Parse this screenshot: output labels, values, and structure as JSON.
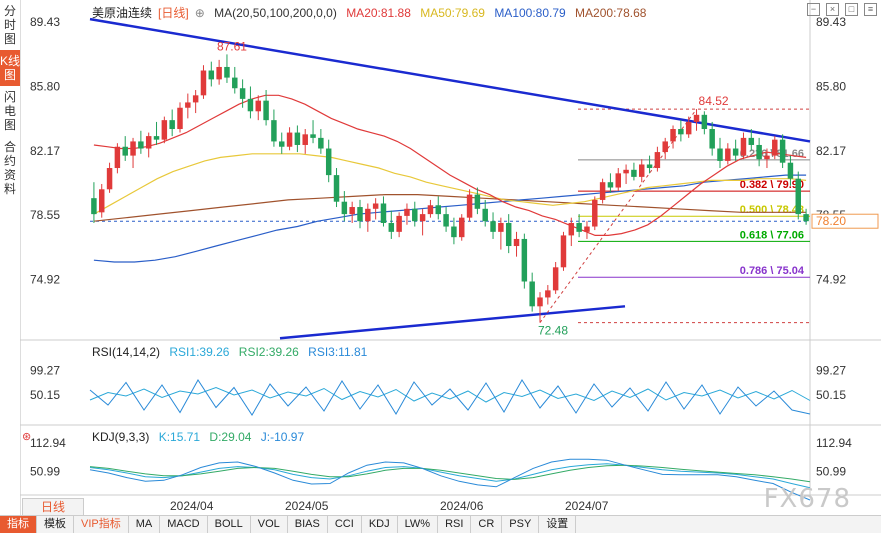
{
  "sidebar": {
    "tabs": [
      {
        "label": "分时图",
        "active": false
      },
      {
        "label": "K线图",
        "active": true
      },
      {
        "label": "闪电图",
        "active": false
      },
      {
        "label": "合约资料",
        "active": false
      }
    ]
  },
  "legend": {
    "symbol": "美原油连续",
    "period": "[日线]",
    "ma_label": "MA(20,50,100,200,0,0)",
    "ma20": "MA20:81.88",
    "ma50": "MA50:79.69",
    "ma100": "MA100:80.79",
    "ma200": "MA200:78.68",
    "colors": {
      "ma20": "#e03a3a",
      "ma50": "#e8c83a",
      "ma100": "#2a5ec8",
      "ma200": "#a0522d"
    }
  },
  "rsi_legend": {
    "name": "RSI(14,14,2)",
    "rsi1": "RSI1:39.26",
    "rsi2": "RSI2:39.26",
    "rsi3": "RSI3:11.81"
  },
  "kdj_legend": {
    "name": "KDJ(9,3,3)",
    "k": "K:15.71",
    "d": "D:29.04",
    "j": "J:-10.97"
  },
  "bottom_bar": {
    "period_label": "日线",
    "items": [
      "指标",
      "模板",
      "VIP指标",
      "MA",
      "MACD",
      "BOLL",
      "VOL",
      "BIAS",
      "CCI",
      "KDJ",
      "LW%",
      "RSI",
      "CR",
      "PSY",
      "设置"
    ]
  },
  "watermark": "FX678",
  "chart_data": [
    {
      "type": "candlestick",
      "title": "美原油连续 日线",
      "y_ticks": [
        89.43,
        85.8,
        82.17,
        78.55,
        74.92
      ],
      "ylim": [
        71.5,
        90.0
      ],
      "x_ticks": [
        "2024/04",
        "2024/05",
        "2024/06",
        "2024/07"
      ],
      "current_price": "78.20",
      "annotations": {
        "high": "87.61",
        "low": "72.48",
        "swing_high": "84.52"
      },
      "fib_levels": [
        {
          "label": "0.236 \\ 81.66",
          "value": 81.66,
          "color": "#888888"
        },
        {
          "label": "0.382 \\ 79.90",
          "value": 79.9,
          "color": "#cc0000"
        },
        {
          "label": "0.500 \\ 78.48",
          "value": 78.48,
          "color": "#c8c800"
        },
        {
          "label": "0.618 \\ 77.06",
          "value": 77.06,
          "color": "#00aa00"
        },
        {
          "label": "0.786 \\ 75.04",
          "value": 75.04,
          "color": "#8833cc"
        }
      ],
      "candles": [
        {
          "o": 79.5,
          "h": 80.4,
          "l": 78.1,
          "c": 78.6
        },
        {
          "o": 78.7,
          "h": 80.3,
          "l": 78.4,
          "c": 80.0
        },
        {
          "o": 80.0,
          "h": 81.5,
          "l": 79.8,
          "c": 81.2
        },
        {
          "o": 81.2,
          "h": 82.6,
          "l": 80.9,
          "c": 82.4
        },
        {
          "o": 82.4,
          "h": 83.0,
          "l": 81.6,
          "c": 81.9
        },
        {
          "o": 81.9,
          "h": 82.9,
          "l": 81.2,
          "c": 82.7
        },
        {
          "o": 82.7,
          "h": 83.3,
          "l": 82.0,
          "c": 82.3
        },
        {
          "o": 82.3,
          "h": 83.2,
          "l": 81.8,
          "c": 83.0
        },
        {
          "o": 83.0,
          "h": 83.8,
          "l": 82.5,
          "c": 82.8
        },
        {
          "o": 82.8,
          "h": 84.1,
          "l": 82.6,
          "c": 83.9
        },
        {
          "o": 83.9,
          "h": 84.5,
          "l": 83.0,
          "c": 83.4
        },
        {
          "o": 83.4,
          "h": 84.9,
          "l": 83.2,
          "c": 84.6
        },
        {
          "o": 84.6,
          "h": 85.4,
          "l": 84.0,
          "c": 84.9
        },
        {
          "o": 84.9,
          "h": 85.6,
          "l": 84.3,
          "c": 85.3
        },
        {
          "o": 85.3,
          "h": 87.0,
          "l": 85.1,
          "c": 86.7
        },
        {
          "o": 86.7,
          "h": 87.2,
          "l": 85.8,
          "c": 86.2
        },
        {
          "o": 86.2,
          "h": 87.3,
          "l": 85.9,
          "c": 86.9
        },
        {
          "o": 86.9,
          "h": 87.61,
          "l": 86.0,
          "c": 86.3
        },
        {
          "o": 86.3,
          "h": 86.9,
          "l": 85.4,
          "c": 85.7
        },
        {
          "o": 85.7,
          "h": 86.2,
          "l": 84.6,
          "c": 85.1
        },
        {
          "o": 85.1,
          "h": 85.8,
          "l": 84.0,
          "c": 84.4
        },
        {
          "o": 84.4,
          "h": 85.3,
          "l": 83.9,
          "c": 85.0
        },
        {
          "o": 85.0,
          "h": 85.6,
          "l": 83.6,
          "c": 83.9
        },
        {
          "o": 83.9,
          "h": 84.5,
          "l": 82.4,
          "c": 82.7
        },
        {
          "o": 82.7,
          "h": 83.2,
          "l": 82.0,
          "c": 82.4
        },
        {
          "o": 82.4,
          "h": 83.5,
          "l": 82.2,
          "c": 83.2
        },
        {
          "o": 83.2,
          "h": 83.6,
          "l": 82.1,
          "c": 82.5
        },
        {
          "o": 82.5,
          "h": 83.4,
          "l": 82.0,
          "c": 83.1
        },
        {
          "o": 83.1,
          "h": 83.9,
          "l": 82.6,
          "c": 82.9
        },
        {
          "o": 82.9,
          "h": 83.4,
          "l": 82.0,
          "c": 82.3
        },
        {
          "o": 82.3,
          "h": 82.8,
          "l": 80.4,
          "c": 80.8
        },
        {
          "o": 80.8,
          "h": 81.2,
          "l": 79.0,
          "c": 79.3
        },
        {
          "o": 79.3,
          "h": 79.9,
          "l": 78.2,
          "c": 78.6
        },
        {
          "o": 78.6,
          "h": 79.3,
          "l": 78.1,
          "c": 79.0
        },
        {
          "o": 79.0,
          "h": 79.4,
          "l": 77.8,
          "c": 78.2
        },
        {
          "o": 78.2,
          "h": 79.2,
          "l": 77.6,
          "c": 78.9
        },
        {
          "o": 78.9,
          "h": 79.5,
          "l": 78.3,
          "c": 79.2
        },
        {
          "o": 79.2,
          "h": 79.6,
          "l": 77.9,
          "c": 78.1
        },
        {
          "o": 78.1,
          "h": 78.8,
          "l": 77.2,
          "c": 77.6
        },
        {
          "o": 77.6,
          "h": 78.7,
          "l": 77.3,
          "c": 78.5
        },
        {
          "o": 78.5,
          "h": 79.2,
          "l": 78.0,
          "c": 78.9
        },
        {
          "o": 78.9,
          "h": 79.3,
          "l": 77.9,
          "c": 78.2
        },
        {
          "o": 78.2,
          "h": 78.9,
          "l": 77.4,
          "c": 78.6
        },
        {
          "o": 78.6,
          "h": 79.4,
          "l": 78.4,
          "c": 79.1
        },
        {
          "o": 79.1,
          "h": 79.6,
          "l": 78.3,
          "c": 78.6
        },
        {
          "o": 78.6,
          "h": 79.0,
          "l": 77.6,
          "c": 77.9
        },
        {
          "o": 77.9,
          "h": 78.4,
          "l": 76.9,
          "c": 77.3
        },
        {
          "o": 77.3,
          "h": 78.6,
          "l": 77.1,
          "c": 78.4
        },
        {
          "o": 78.4,
          "h": 80.0,
          "l": 78.2,
          "c": 79.7
        },
        {
          "o": 79.7,
          "h": 80.1,
          "l": 78.6,
          "c": 78.9
        },
        {
          "o": 78.9,
          "h": 79.4,
          "l": 77.9,
          "c": 78.2
        },
        {
          "o": 78.2,
          "h": 78.7,
          "l": 77.2,
          "c": 77.6
        },
        {
          "o": 77.6,
          "h": 78.4,
          "l": 76.6,
          "c": 78.1
        },
        {
          "o": 78.1,
          "h": 78.6,
          "l": 76.4,
          "c": 76.8
        },
        {
          "o": 76.8,
          "h": 77.6,
          "l": 76.2,
          "c": 77.2
        },
        {
          "o": 77.2,
          "h": 77.5,
          "l": 74.4,
          "c": 74.8
        },
        {
          "o": 74.8,
          "h": 75.3,
          "l": 73.1,
          "c": 73.4
        },
        {
          "o": 73.4,
          "h": 74.2,
          "l": 72.48,
          "c": 73.9
        },
        {
          "o": 73.9,
          "h": 74.6,
          "l": 73.5,
          "c": 74.3
        },
        {
          "o": 74.3,
          "h": 75.9,
          "l": 74.1,
          "c": 75.6
        },
        {
          "o": 75.6,
          "h": 77.6,
          "l": 75.4,
          "c": 77.4
        },
        {
          "o": 77.4,
          "h": 78.4,
          "l": 76.8,
          "c": 78.1
        },
        {
          "o": 78.1,
          "h": 78.6,
          "l": 77.3,
          "c": 77.6
        },
        {
          "o": 77.6,
          "h": 78.2,
          "l": 77.2,
          "c": 77.9
        },
        {
          "o": 77.9,
          "h": 79.6,
          "l": 77.7,
          "c": 79.4
        },
        {
          "o": 79.4,
          "h": 80.6,
          "l": 79.2,
          "c": 80.4
        },
        {
          "o": 80.4,
          "h": 80.9,
          "l": 79.8,
          "c": 80.1
        },
        {
          "o": 80.1,
          "h": 81.2,
          "l": 79.9,
          "c": 80.9
        },
        {
          "o": 80.9,
          "h": 81.4,
          "l": 80.3,
          "c": 81.1
        },
        {
          "o": 81.1,
          "h": 81.5,
          "l": 80.5,
          "c": 80.7
        },
        {
          "o": 80.7,
          "h": 81.7,
          "l": 80.4,
          "c": 81.4
        },
        {
          "o": 81.4,
          "h": 81.9,
          "l": 80.9,
          "c": 81.2
        },
        {
          "o": 81.2,
          "h": 82.4,
          "l": 81.0,
          "c": 82.1
        },
        {
          "o": 82.1,
          "h": 82.9,
          "l": 81.7,
          "c": 82.7
        },
        {
          "o": 82.7,
          "h": 83.6,
          "l": 82.3,
          "c": 83.4
        },
        {
          "o": 83.4,
          "h": 83.9,
          "l": 82.7,
          "c": 83.1
        },
        {
          "o": 83.1,
          "h": 84.1,
          "l": 82.9,
          "c": 83.8
        },
        {
          "o": 83.8,
          "h": 84.52,
          "l": 83.3,
          "c": 84.2
        },
        {
          "o": 84.2,
          "h": 84.4,
          "l": 83.1,
          "c": 83.4
        },
        {
          "o": 83.4,
          "h": 83.8,
          "l": 81.9,
          "c": 82.3
        },
        {
          "o": 82.3,
          "h": 82.9,
          "l": 81.2,
          "c": 81.6
        },
        {
          "o": 81.6,
          "h": 82.6,
          "l": 81.4,
          "c": 82.3
        },
        {
          "o": 82.3,
          "h": 82.8,
          "l": 81.6,
          "c": 81.9
        },
        {
          "o": 81.9,
          "h": 83.2,
          "l": 81.7,
          "c": 82.9
        },
        {
          "o": 82.9,
          "h": 83.4,
          "l": 82.2,
          "c": 82.5
        },
        {
          "o": 82.5,
          "h": 82.9,
          "l": 81.3,
          "c": 81.7
        },
        {
          "o": 81.7,
          "h": 82.3,
          "l": 81.2,
          "c": 81.9
        },
        {
          "o": 81.9,
          "h": 83.0,
          "l": 81.7,
          "c": 82.8
        },
        {
          "o": 82.8,
          "h": 83.1,
          "l": 81.2,
          "c": 81.5
        },
        {
          "o": 81.5,
          "h": 81.9,
          "l": 80.2,
          "c": 80.6
        },
        {
          "o": 80.6,
          "h": 81.0,
          "l": 78.3,
          "c": 78.6
        },
        {
          "o": 78.6,
          "h": 78.9,
          "l": 78.0,
          "c": 78.2
        }
      ],
      "ma20": [
        82.5,
        82.4,
        82.3,
        82.3,
        82.4,
        82.6,
        82.9,
        83.2,
        83.6,
        84.0,
        84.4,
        84.8,
        85.1,
        85.3,
        85.3,
        85.1,
        84.8,
        84.4,
        84.0,
        83.7,
        83.4,
        83.2,
        83.0,
        82.7,
        82.3,
        81.8,
        81.3,
        80.8,
        80.4,
        80.0,
        79.7,
        79.3,
        79.0,
        78.8,
        78.5,
        78.3,
        78.0,
        77.7,
        77.4,
        77.4,
        77.5,
        77.7,
        78.0,
        78.5,
        79.1,
        79.7,
        80.3,
        80.8,
        81.3,
        81.7,
        81.9,
        82.1,
        82.0,
        81.9,
        81.8
      ],
      "ma50": [
        78.6,
        79.1,
        79.6,
        80.1,
        80.6,
        81.0,
        81.3,
        81.6,
        81.8,
        81.9,
        82.0,
        82.0,
        82.0,
        82.0,
        81.9,
        81.8,
        81.6,
        81.4,
        81.2,
        80.9,
        80.7,
        80.4,
        80.2,
        80.0,
        79.8,
        79.6,
        79.4,
        79.3,
        79.2,
        79.1,
        79.2,
        79.3,
        79.5,
        79.7,
        79.9,
        80.1,
        80.2,
        80.3,
        80.4,
        80.5,
        80.5,
        80.5,
        80.6,
        80.6,
        80.6,
        80.5
      ],
      "ma100": [
        76.0,
        75.9,
        75.9,
        76.0,
        76.2,
        76.5,
        76.8,
        77.1,
        77.4,
        77.7,
        77.9,
        78.2,
        78.4,
        78.6,
        78.7,
        78.8,
        78.9,
        79.0,
        79.1,
        79.2,
        79.3,
        79.4,
        79.5,
        79.6,
        79.7,
        79.8,
        79.9,
        80.0,
        80.1,
        80.2,
        80.4,
        80.5,
        80.6,
        80.7,
        80.8,
        80.8
      ],
      "ma200": [
        78.2,
        78.4,
        78.6,
        78.8,
        79.0,
        79.2,
        79.4,
        79.5,
        79.6,
        79.7,
        79.7,
        79.6,
        79.5,
        79.4,
        79.3,
        79.2,
        79.1,
        79.0,
        78.9,
        78.8,
        78.7,
        78.7,
        78.7
      ]
    },
    {
      "type": "line",
      "title": "RSI(14,14,2)",
      "y_ticks": [
        99.27,
        50.15
      ],
      "series": [
        {
          "name": "RSI1",
          "values": [
            40,
            55,
            48,
            62,
            45,
            58,
            52,
            65,
            50,
            60,
            44,
            56,
            48,
            63,
            41,
            57,
            46,
            61,
            38,
            54,
            42,
            58,
            36,
            55,
            47,
            60,
            43,
            52,
            39,
            58,
            45,
            62,
            40,
            55,
            48,
            60,
            44,
            57,
            42,
            59,
            39
          ]
        },
        {
          "name": "RSI3",
          "values": [
            60,
            30,
            75,
            20,
            70,
            15,
            80,
            25,
            65,
            10,
            72,
            28,
            66,
            18,
            78,
            22,
            70,
            12,
            76,
            30,
            62,
            20,
            74,
            16,
            80,
            24,
            68,
            14,
            72,
            26,
            64,
            18,
            76,
            22,
            70,
            12,
            66,
            28,
            58,
            20,
            12
          ]
        }
      ]
    },
    {
      "type": "line",
      "title": "KDJ(9,3,3)",
      "y_ticks": [
        112.94,
        50.99
      ],
      "series": [
        {
          "name": "K",
          "values": [
            60,
            55,
            48,
            40,
            38,
            42,
            50,
            58,
            62,
            60,
            55,
            45,
            38,
            35,
            42,
            52,
            60,
            62,
            58,
            50,
            42,
            36,
            30,
            35,
            45,
            55,
            62,
            66,
            68,
            65,
            60,
            55,
            52,
            50,
            48,
            45,
            40,
            35,
            25,
            16
          ]
        },
        {
          "name": "D",
          "values": [
            62,
            58,
            52,
            46,
            42,
            42,
            46,
            52,
            58,
            60,
            58,
            52,
            45,
            40,
            40,
            46,
            54,
            58,
            58,
            54,
            48,
            42,
            36,
            34,
            38,
            46,
            54,
            60,
            64,
            65,
            63,
            60,
            56,
            53,
            50,
            47,
            44,
            40,
            35,
            29
          ]
        },
        {
          "name": "J",
          "values": [
            55,
            48,
            38,
            30,
            32,
            44,
            60,
            70,
            72,
            62,
            48,
            32,
            24,
            25,
            48,
            65,
            72,
            70,
            58,
            42,
            30,
            22,
            18,
            38,
            58,
            72,
            78,
            78,
            76,
            65,
            55,
            45,
            44,
            44,
            44,
            40,
            32,
            25,
            6,
            -11
          ]
        }
      ]
    }
  ]
}
